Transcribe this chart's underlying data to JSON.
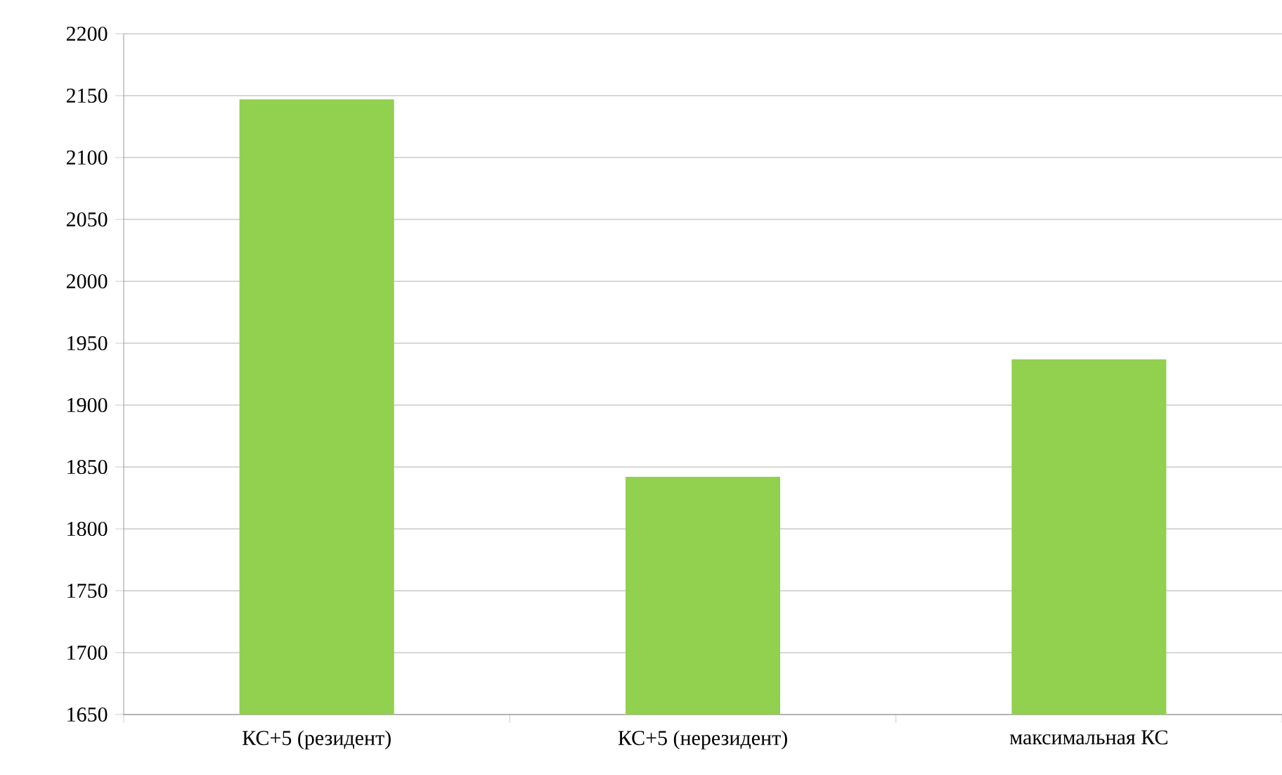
{
  "chart_data": {
    "type": "bar",
    "categories": [
      "КС+5 (резидент)",
      "КС+5 (нерезидент)",
      "максимальная КС"
    ],
    "values": [
      2147,
      1842,
      1937
    ],
    "color": "#92d050",
    "ylim": [
      1650,
      2200
    ],
    "yticks": [
      1650,
      1700,
      1750,
      1800,
      1850,
      1900,
      1950,
      2000,
      2050,
      2100,
      2150,
      2200
    ],
    "grid": "y"
  }
}
